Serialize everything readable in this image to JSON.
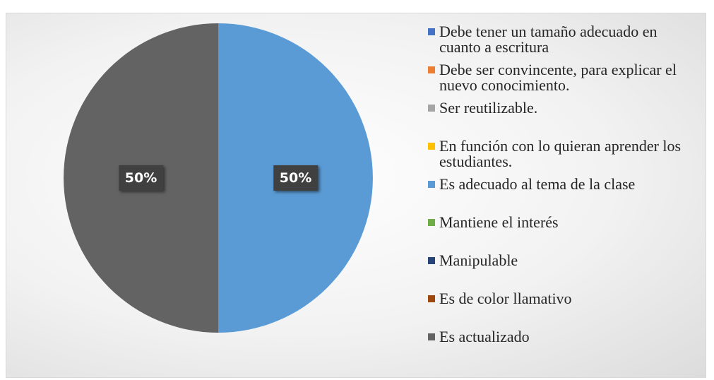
{
  "chart_data": {
    "type": "pie",
    "categories": [
      "Debe tener un tamaño adecuado en cuanto a escritura",
      "Debe ser convincente, para explicar el nuevo conocimiento.",
      "Ser reutilizable.",
      "En función con lo quieran aprender los estudiantes.",
      "Es adecuado al tema de la clase",
      "Mantiene el interés",
      "Manipulable",
      "Es de color llamativo",
      "Es actualizado"
    ],
    "values": [
      0,
      0,
      0,
      0,
      50,
      0,
      0,
      0,
      50
    ],
    "value_labels": [
      null,
      null,
      null,
      null,
      "50%",
      null,
      null,
      null,
      "50%"
    ],
    "colors": [
      "#4472c4",
      "#ed7d31",
      "#a5a5a5",
      "#ffc000",
      "#5b9bd5",
      "#70ad47",
      "#264478",
      "#9e480e",
      "#636363"
    ],
    "legend": "right"
  }
}
